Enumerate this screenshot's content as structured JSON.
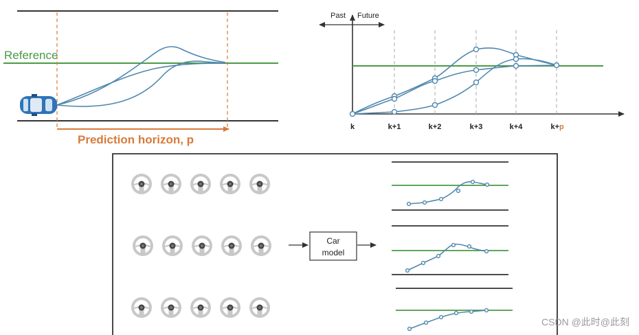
{
  "left_panel": {
    "reference_label": "Reference",
    "horizon_label": "Prediction horizon, p"
  },
  "right_panel": {
    "past_label": "Past",
    "future_label": "Future",
    "ticks": [
      "k",
      "k+1",
      "k+2",
      "k+3",
      "k+4",
      "k+"
    ],
    "p_suffix": "p"
  },
  "bottom_panel": {
    "box_label_line1": "Car",
    "box_label_line2": "model",
    "wheel_rows": 3,
    "wheels_per_row": 5
  },
  "watermark": "CSDN @此时@此刻",
  "colors": {
    "trajectory": "#4f87ad",
    "reference": "#4a9a46",
    "horizon": "#d9793a",
    "road": "#333333"
  }
}
